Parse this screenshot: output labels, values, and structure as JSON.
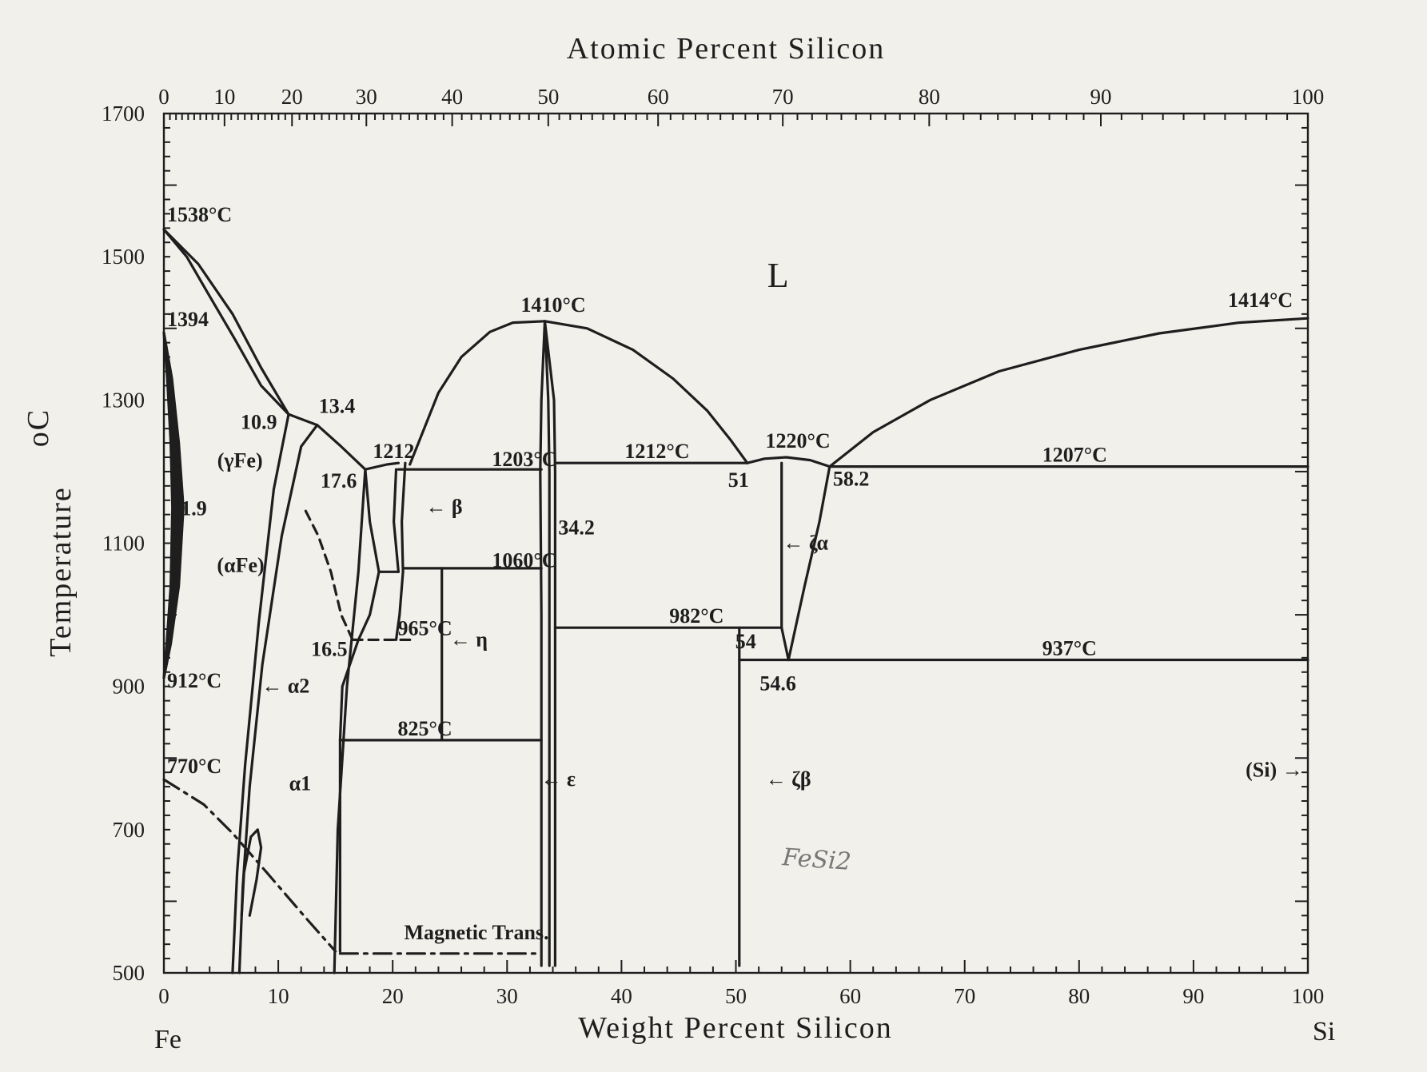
{
  "chart_data": {
    "type": "phase-diagram",
    "title": "",
    "xlabel_bottom": "Weight Percent Silicon",
    "xlabel_top": "Atomic Percent Silicon",
    "ylabel": "Temperature",
    "ylabel_unit": "oC",
    "xlim": [
      0,
      100
    ],
    "ylim": [
      500,
      1700
    ],
    "grid": false,
    "bottom_ticks": [
      "0",
      "10",
      "20",
      "30",
      "40",
      "50",
      "60",
      "70",
      "80",
      "90",
      "100"
    ],
    "top_ticks": [
      {
        "at": 0,
        "label": "0"
      },
      {
        "at": 10,
        "label": "10"
      },
      {
        "at": 20,
        "label": "20"
      },
      {
        "at": 30,
        "label": "30"
      },
      {
        "at": 40,
        "label": "40"
      },
      {
        "at": 50,
        "label": "50"
      },
      {
        "at": 60,
        "label": "60"
      },
      {
        "at": 70,
        "label": "70"
      },
      {
        "at": 80,
        "label": "80"
      },
      {
        "at": 90,
        "label": "90"
      },
      {
        "at": 100,
        "label": "100"
      }
    ],
    "top_tick_wt": [
      0,
      5.3,
      11.2,
      17.7,
      25.2,
      33.6,
      43.2,
      54.1,
      66.9,
      81.9,
      100
    ],
    "y_ticks": [
      "500",
      "700",
      "900",
      "1100",
      "1300",
      "1500",
      "1700"
    ],
    "corner_labels": {
      "left": "Fe",
      "right": "Si"
    },
    "handwritten_note": "FeSi2",
    "phases": [
      {
        "id": "liquid",
        "label": "L",
        "x": 54,
        "y": 1480
      },
      {
        "id": "gamma-fe",
        "label": "(γFe)",
        "x": 5.5,
        "y": 1215
      },
      {
        "id": "alpha-fe",
        "label": "(αFe)",
        "x": 5.2,
        "y": 1060
      },
      {
        "id": "alpha1",
        "label": "α1",
        "x": 12.2,
        "y": 755
      },
      {
        "id": "alpha2",
        "label": "← α2",
        "x": 10.5,
        "y": 900
      },
      {
        "id": "beta",
        "label": "← β",
        "x": 22.6,
        "y": 1150
      },
      {
        "id": "eta",
        "label": "← η",
        "x": 25,
        "y": 965
      },
      {
        "id": "epsilon",
        "label": "← ε",
        "x": 33.5,
        "y": 770
      },
      {
        "id": "zeta-alpha",
        "label": "← ζα",
        "x": 55.5,
        "y": 1100
      },
      {
        "id": "zeta-beta",
        "label": "← ζβ",
        "x": 50.5,
        "y": 770
      },
      {
        "id": "si",
        "label": "(Si) →",
        "x": 94,
        "y": 783
      }
    ],
    "annotations": [
      {
        "text": "1538°C",
        "x": 0,
        "y": 1538
      },
      {
        "text": "1394",
        "x": 0,
        "y": 1394
      },
      {
        "text": "912°C",
        "x": 0,
        "y": 912
      },
      {
        "text": "770°C",
        "x": 0,
        "y": 770
      },
      {
        "text": "1.9",
        "x": 1.9,
        "y": 1150
      },
      {
        "text": "10.9",
        "x": 10.9,
        "y": 1280
      },
      {
        "text": "13.4",
        "x": 13.4,
        "y": 1280
      },
      {
        "text": "17.6",
        "x": 17.6,
        "y": 1200
      },
      {
        "text": "1212",
        "x": 20.5,
        "y": 1212
      },
      {
        "text": "1203°C",
        "x": 28.4,
        "y": 1203
      },
      {
        "text": "1060°C",
        "x": 28.4,
        "y": 1060
      },
      {
        "text": "965°C",
        "x": 20.3,
        "y": 965
      },
      {
        "text": "16.5",
        "x": 16.5,
        "y": 965
      },
      {
        "text": "825°C",
        "x": 20.3,
        "y": 825
      },
      {
        "text": "1410°C",
        "x": 33.3,
        "y": 1410
      },
      {
        "text": "34.2",
        "x": 34.2,
        "y": 1150
      },
      {
        "text": "1212°C",
        "x": 40,
        "y": 1212
      },
      {
        "text": "51",
        "x": 51,
        "y": 1212
      },
      {
        "text": "1220°C",
        "x": 54.4,
        "y": 1220
      },
      {
        "text": "58.2",
        "x": 58.2,
        "y": 1207
      },
      {
        "text": "1207°C",
        "x": 76.5,
        "y": 1207
      },
      {
        "text": "982°C",
        "x": 44.6,
        "y": 982
      },
      {
        "text": "54",
        "x": 54,
        "y": 982
      },
      {
        "text": "54.6",
        "x": 54.6,
        "y": 937
      },
      {
        "text": "937°C",
        "x": 76.5,
        "y": 937
      },
      {
        "text": "1414°C",
        "x": 100,
        "y": 1414
      },
      {
        "text": "Magnetic Trans.",
        "x": 21,
        "y": 540
      }
    ],
    "boundaries": [
      {
        "name": "liquidus-fe",
        "style": "solid",
        "points": [
          [
            0,
            1538
          ],
          [
            3,
            1490
          ],
          [
            6,
            1420
          ],
          [
            8.5,
            1345
          ],
          [
            10.9,
            1280
          ],
          [
            13.4,
            1265
          ],
          [
            15.5,
            1235
          ],
          [
            17.6,
            1203
          ],
          [
            19.5,
            1210
          ],
          [
            20.5,
            1212
          ]
        ]
      },
      {
        "name": "solidus-fe",
        "style": "solid",
        "points": [
          [
            0,
            1538
          ],
          [
            2,
            1500
          ],
          [
            4,
            1445
          ],
          [
            6.2,
            1385
          ],
          [
            8.5,
            1320
          ],
          [
            10.9,
            1280
          ]
        ]
      },
      {
        "name": "gamma-loop-outer",
        "style": "solid",
        "points": [
          [
            0,
            1394
          ],
          [
            0.7,
            1330
          ],
          [
            1.3,
            1240
          ],
          [
            1.7,
            1150
          ],
          [
            1.3,
            1040
          ],
          [
            0.6,
            960
          ],
          [
            0,
            912
          ]
        ]
      },
      {
        "name": "gamma-loop-inner",
        "style": "solid",
        "points": [
          [
            0,
            1394
          ],
          [
            0.3,
            1330
          ],
          [
            0.6,
            1240
          ],
          [
            0.75,
            1150
          ],
          [
            0.6,
            1040
          ],
          [
            0.25,
            960
          ],
          [
            0,
            912
          ]
        ]
      },
      {
        "name": "alpha1-alpha2-left-1",
        "style": "solid",
        "points": [
          [
            6,
            500
          ],
          [
            6.4,
            640
          ],
          [
            7.1,
            790
          ],
          [
            8.3,
            990
          ],
          [
            9.6,
            1175
          ],
          [
            10.9,
            1280
          ]
        ]
      },
      {
        "name": "alpha1-alpha2-left-2",
        "style": "solid",
        "points": [
          [
            6.6,
            500
          ],
          [
            6.9,
            620
          ],
          [
            7.5,
            760
          ],
          [
            8.6,
            930
          ],
          [
            10.3,
            1110
          ],
          [
            12,
            1235
          ],
          [
            13.4,
            1265
          ]
        ]
      },
      {
        "name": "alpha-ordering-loop",
        "style": "solid",
        "points": [
          [
            6.8,
            580
          ],
          [
            7,
            640
          ],
          [
            7.6,
            690
          ],
          [
            8.2,
            700
          ],
          [
            8.5,
            675
          ],
          [
            8.1,
            630
          ],
          [
            7.5,
            580
          ]
        ]
      },
      {
        "name": "alpha2-right",
        "style": "solid",
        "points": [
          [
            14.9,
            500
          ],
          [
            15.2,
            700
          ],
          [
            16,
            900
          ],
          [
            17,
            1060
          ],
          [
            17.6,
            1203
          ]
        ]
      },
      {
        "name": "alpha2-ordering-dashed",
        "style": "dashed",
        "points": [
          [
            12.4,
            1145
          ],
          [
            13.5,
            1110
          ],
          [
            14.6,
            1060
          ],
          [
            15.5,
            1000
          ],
          [
            16.5,
            965
          ]
        ]
      },
      {
        "name": "beta-left",
        "style": "solid",
        "points": [
          [
            17.6,
            1203
          ],
          [
            18,
            1130
          ],
          [
            18.8,
            1060
          ]
        ]
      },
      {
        "name": "beta-right",
        "style": "solid",
        "points": [
          [
            20.3,
            1203
          ],
          [
            20.1,
            1130
          ],
          [
            20.5,
            1060
          ]
        ]
      },
      {
        "name": "beta-right-2",
        "style": "solid",
        "points": [
          [
            21.1,
            1212
          ],
          [
            20.8,
            1130
          ],
          [
            20.9,
            1060
          ]
        ]
      },
      {
        "name": "fe2si-field-left",
        "style": "solid",
        "points": [
          [
            18.8,
            1060
          ],
          [
            18,
            1000
          ],
          [
            17,
            965
          ],
          [
            15.6,
            900
          ],
          [
            15.4,
            825
          ],
          [
            15.4,
            530
          ]
        ]
      },
      {
        "name": "fe2si-field-right",
        "style": "solid",
        "points": [
          [
            20.9,
            1060
          ],
          [
            20.6,
            1000
          ],
          [
            20.3,
            965
          ]
        ]
      },
      {
        "name": "fe5si3-box-right",
        "style": "solid",
        "points": [
          [
            24.3,
            1065
          ],
          [
            24.3,
            825
          ]
        ]
      },
      {
        "name": "eutectic-1203",
        "style": "solid",
        "points": [
          [
            20.5,
            1203
          ],
          [
            33,
            1203
          ]
        ]
      },
      {
        "name": "line-1060",
        "style": "solid",
        "points": [
          [
            20.9,
            1065
          ],
          [
            33,
            1065
          ]
        ]
      },
      {
        "name": "line-1060-step",
        "style": "solid",
        "points": [
          [
            18.8,
            1060
          ],
          [
            20.5,
            1060
          ]
        ]
      },
      {
        "name": "line-965",
        "style": "dashed",
        "points": [
          [
            16.5,
            965
          ],
          [
            21.5,
            965
          ]
        ]
      },
      {
        "name": "line-825",
        "style": "solid",
        "points": [
          [
            15.4,
            825
          ],
          [
            33,
            825
          ]
        ]
      },
      {
        "name": "liquidus-fesi-left",
        "style": "solid",
        "points": [
          [
            21.5,
            1210
          ],
          [
            22.5,
            1250
          ],
          [
            24,
            1310
          ],
          [
            26,
            1360
          ],
          [
            28.5,
            1395
          ],
          [
            30.5,
            1408
          ],
          [
            33.3,
            1410
          ]
        ]
      },
      {
        "name": "liquidus-fesi-right",
        "style": "solid",
        "points": [
          [
            33.3,
            1410
          ],
          [
            37,
            1400
          ],
          [
            41,
            1370
          ],
          [
            44.5,
            1330
          ],
          [
            47.5,
            1285
          ],
          [
            49.5,
            1245
          ],
          [
            51,
            1212
          ]
        ]
      },
      {
        "name": "fesi-left-1",
        "style": "solid",
        "points": [
          [
            33.3,
            1410
          ],
          [
            33,
            1300
          ],
          [
            32.9,
            1200
          ],
          [
            33,
            1000
          ],
          [
            33,
            510
          ]
        ]
      },
      {
        "name": "fesi-left-2",
        "style": "solid",
        "points": [
          [
            33.3,
            1410
          ],
          [
            33.6,
            1300
          ],
          [
            33.7,
            1200
          ],
          [
            33.7,
            1000
          ],
          [
            33.7,
            510
          ]
        ]
      },
      {
        "name": "fesi-right",
        "style": "solid",
        "points": [
          [
            33.3,
            1410
          ],
          [
            34.1,
            1300
          ],
          [
            34.2,
            1200
          ],
          [
            34.2,
            1000
          ],
          [
            34.2,
            510
          ]
        ]
      },
      {
        "name": "eutectic-1212",
        "style": "solid",
        "points": [
          [
            34.2,
            1212
          ],
          [
            51,
            1212
          ]
        ]
      },
      {
        "name": "zeta-dome",
        "style": "solid",
        "points": [
          [
            51,
            1212
          ],
          [
            52.5,
            1218
          ],
          [
            54.4,
            1220
          ],
          [
            56.5,
            1216
          ],
          [
            58.2,
            1207
          ]
        ]
      },
      {
        "name": "zeta-alpha-left",
        "style": "solid",
        "points": [
          [
            54,
            1212
          ],
          [
            54,
            982
          ]
        ]
      },
      {
        "name": "zeta-alpha-right",
        "style": "solid",
        "points": [
          [
            58.2,
            1207
          ],
          [
            57.3,
            1130
          ],
          [
            56,
            1040
          ],
          [
            54.6,
            937
          ]
        ]
      },
      {
        "name": "zeta-alpha-bottom",
        "style": "solid",
        "points": [
          [
            54,
            982
          ],
          [
            54.6,
            937
          ]
        ]
      },
      {
        "name": "line-982",
        "style": "solid",
        "points": [
          [
            34.2,
            982
          ],
          [
            54,
            982
          ]
        ]
      },
      {
        "name": "zeta-beta-vertical",
        "style": "solid",
        "points": [
          [
            50.3,
            982
          ],
          [
            50.3,
            510
          ]
        ]
      },
      {
        "name": "line-937",
        "style": "solid",
        "points": [
          [
            50.3,
            937
          ],
          [
            100,
            937
          ]
        ]
      },
      {
        "name": "eutectic-1207",
        "style": "solid",
        "points": [
          [
            58.2,
            1207
          ],
          [
            100,
            1207
          ]
        ]
      },
      {
        "name": "liquidus-si",
        "style": "solid",
        "points": [
          [
            58.2,
            1207
          ],
          [
            62,
            1255
          ],
          [
            67,
            1300
          ],
          [
            73,
            1340
          ],
          [
            80,
            1370
          ],
          [
            87,
            1393
          ],
          [
            94,
            1408
          ],
          [
            100,
            1414
          ]
        ]
      },
      {
        "name": "magnetic-curie",
        "style": "dashdot",
        "points": [
          [
            0,
            770
          ],
          [
            3.5,
            735
          ],
          [
            6,
            695
          ],
          [
            9,
            640
          ],
          [
            12.5,
            575
          ],
          [
            15,
            530
          ]
        ]
      },
      {
        "name": "magnetic-trans",
        "style": "dashdot",
        "points": [
          [
            15.4,
            527
          ],
          [
            33,
            527
          ]
        ]
      }
    ]
  }
}
